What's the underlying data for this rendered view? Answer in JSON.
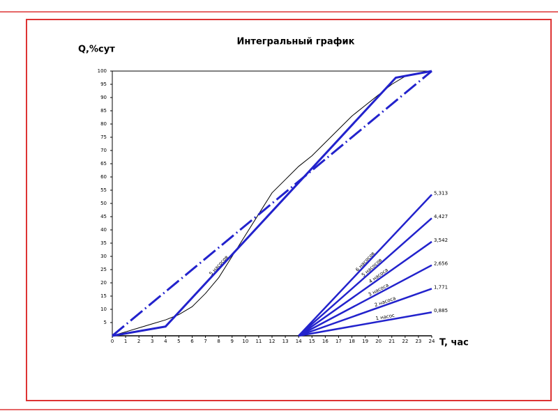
{
  "chart_data": {
    "type": "line",
    "title": "Интегральный график",
    "y_label": "Q,%сут",
    "x_label": "T, час",
    "xlim": [
      0,
      24
    ],
    "ylim": [
      0,
      100
    ],
    "xticks": [
      0,
      1,
      2,
      3,
      4,
      5,
      6,
      7,
      8,
      9,
      10,
      11,
      12,
      13,
      14,
      15,
      16,
      17,
      18,
      19,
      20,
      21,
      22,
      23,
      24
    ],
    "yticks": [
      5,
      10,
      15,
      20,
      25,
      30,
      35,
      40,
      45,
      50,
      55,
      60,
      65,
      70,
      75,
      80,
      85,
      90,
      95,
      100
    ],
    "grid": false,
    "end_labels": [
      "0,885",
      "1,771",
      "2,656",
      "3,542",
      "4,427",
      "5,313"
    ],
    "series": [
      {
        "color": "#000000",
        "width": 1,
        "x": [
          0,
          1,
          2,
          3,
          4,
          5,
          6,
          7,
          8,
          9,
          10,
          11,
          12,
          13,
          14,
          15,
          16,
          17,
          18,
          19,
          20,
          21,
          22,
          23,
          24
        ],
        "values": [
          0,
          1.5,
          3,
          4.5,
          6,
          8,
          11,
          16,
          22,
          30,
          38,
          46,
          54,
          59,
          64,
          68,
          73,
          78,
          83,
          87,
          91,
          95,
          98,
          99,
          100
        ]
      },
      {
        "color": "#2222cc",
        "width": 3,
        "dash": true,
        "x": [
          0,
          24
        ],
        "values": [
          0,
          100
        ]
      },
      {
        "name": "5 насосов",
        "color": "#2222cc",
        "width": 3,
        "label_at": 8,
        "x": [
          0,
          4,
          21.3,
          24
        ],
        "values": [
          0,
          3.5,
          97.5,
          100
        ]
      },
      {
        "name": "1 насос",
        "color": "#2222cc",
        "width": 2.5,
        "label_at": 20.5,
        "x": [
          14,
          24
        ],
        "values": [
          0,
          8.885
        ]
      },
      {
        "name": "2 насоса",
        "color": "#2222cc",
        "width": 2.5,
        "label_at": 20.5,
        "x": [
          14,
          24
        ],
        "values": [
          0,
          17.771
        ]
      },
      {
        "name": "3 насоса",
        "color": "#2222cc",
        "width": 2.5,
        "label_at": 20,
        "x": [
          14,
          24
        ],
        "values": [
          0,
          26.656
        ]
      },
      {
        "name": "4 насоса",
        "color": "#2222cc",
        "width": 2.5,
        "label_at": 20,
        "x": [
          14,
          24
        ],
        "values": [
          0,
          35.542
        ]
      },
      {
        "name": "5 насосов",
        "color": "#2222cc",
        "width": 2.5,
        "label_at": 19.5,
        "x": [
          14,
          24
        ],
        "values": [
          0,
          44.427
        ]
      },
      {
        "name": "6 насосов",
        "color": "#2222cc",
        "width": 2.5,
        "label_at": 19,
        "x": [
          14,
          24
        ],
        "values": [
          0,
          53.313
        ]
      }
    ]
  }
}
